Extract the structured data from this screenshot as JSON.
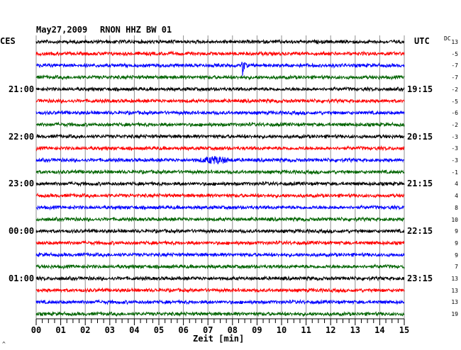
{
  "header": {
    "date": "May27,2009",
    "station": "RNON HHZ BW 01",
    "left_zone": "CES",
    "right_zone": "UTC",
    "dc_label": "DC",
    "footer_mark": "^"
  },
  "chart_data": {
    "type": "line",
    "title": "May27,2009   RNON HHZ BW 01",
    "xlabel": "Zeit [min]",
    "xlim": [
      0,
      15
    ],
    "x_ticks": [
      "00",
      "01",
      "02",
      "03",
      "04",
      "05",
      "06",
      "07",
      "08",
      "09",
      "10",
      "11",
      "12",
      "13",
      "14",
      "15"
    ],
    "grid": true,
    "trace_colors": [
      "#000000",
      "#ff0000",
      "#0000ff",
      "#006400"
    ],
    "left_hour_labels": [
      {
        "trace": 4,
        "label": "21:00"
      },
      {
        "trace": 8,
        "label": "22:00"
      },
      {
        "trace": 12,
        "label": "23:00"
      },
      {
        "trace": 16,
        "label": "00:00"
      },
      {
        "trace": 20,
        "label": "01:00"
      }
    ],
    "right_hour_labels": [
      {
        "trace": 4,
        "label": "19:15"
      },
      {
        "trace": 8,
        "label": "20:15"
      },
      {
        "trace": 12,
        "label": "21:15"
      },
      {
        "trace": 16,
        "label": "22:15"
      },
      {
        "trace": 20,
        "label": "23:15"
      }
    ],
    "dc_offsets": [
      "13",
      "-5",
      "-7",
      "-7",
      "-2",
      "-5",
      "-6",
      "-2",
      "-3",
      "-3",
      "-3",
      "-1",
      "4",
      "4",
      "8",
      "10",
      "9",
      "9",
      "9",
      "7",
      "13",
      "13",
      "13",
      "19"
    ],
    "events": [
      {
        "trace": 2,
        "minute": 8.4,
        "type": "spike",
        "amplitude": 23
      },
      {
        "trace": 10,
        "minute": 7.3,
        "type": "burst",
        "amplitude": 4
      }
    ]
  }
}
